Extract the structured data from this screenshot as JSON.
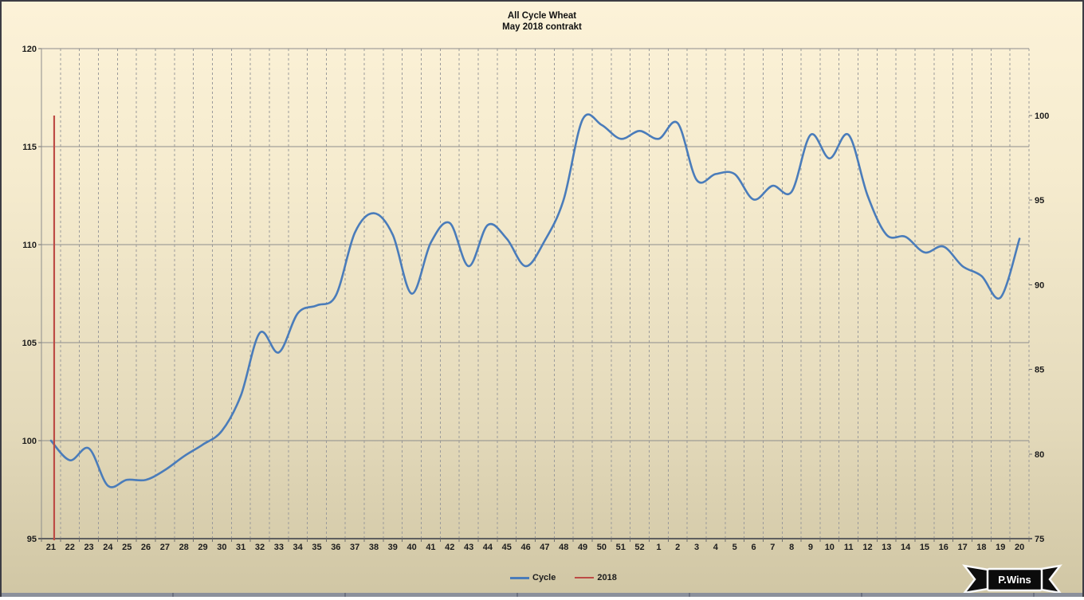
{
  "chart": {
    "title_line1": "All Cycle Wheat",
    "title_line2": "May 2018 contrakt",
    "legend": [
      {
        "label": "Cycle",
        "color": "#4a7cba"
      },
      {
        "label": "2018",
        "color": "#bd4b45"
      }
    ],
    "logo_text": "P.Wins",
    "background_top": "#fcf2d8",
    "background_bottom": "#d0c6a4"
  },
  "chart_data": {
    "type": "line",
    "title": "All Cycle Wheat",
    "subtitle": "May 2018 contrakt",
    "grid": {
      "horizontal": "solid",
      "vertical": "dashed"
    },
    "legend_position": "bottom",
    "x_labels": [
      "21",
      "22",
      "23",
      "24",
      "25",
      "26",
      "27",
      "28",
      "29",
      "30",
      "31",
      "32",
      "33",
      "34",
      "35",
      "36",
      "37",
      "38",
      "39",
      "40",
      "41",
      "42",
      "43",
      "44",
      "45",
      "46",
      "47",
      "48",
      "49",
      "50",
      "51",
      "52",
      "1",
      "2",
      "3",
      "4",
      "5",
      "6",
      "7",
      "8",
      "9",
      "10",
      "11",
      "12",
      "13",
      "14",
      "15",
      "16",
      "17",
      "18",
      "19",
      "20"
    ],
    "left_axis": {
      "range": [
        95,
        120
      ],
      "ticks": [
        95,
        100,
        105,
        110,
        115,
        120
      ]
    },
    "right_axis": {
      "range": [
        75,
        100
      ],
      "ticks": [
        75,
        80,
        85,
        90,
        95,
        100
      ]
    },
    "series": [
      {
        "name": "Cycle",
        "axis": "left",
        "color": "#4a7cba",
        "width": 2.6,
        "smooth": true,
        "values": [
          100.0,
          99.0,
          99.6,
          97.7,
          98.0,
          98.0,
          98.5,
          99.2,
          99.8,
          100.5,
          102.3,
          105.5,
          104.5,
          106.5,
          106.9,
          107.4,
          110.6,
          111.6,
          110.5,
          107.5,
          110.1,
          111.1,
          108.9,
          111.0,
          110.3,
          108.9,
          110.2,
          112.3,
          116.4,
          116.1,
          115.4,
          115.8,
          115.4,
          116.2,
          113.3,
          113.6,
          113.6,
          112.3,
          113.0,
          112.7,
          115.6,
          114.4,
          115.6,
          112.5,
          110.5,
          110.4,
          109.6,
          109.9,
          108.9,
          108.4,
          107.3,
          110.3
        ]
      },
      {
        "name": "2018",
        "axis": "right",
        "color": "#bd4b45",
        "width": 2.2,
        "vertical_at_week": "21",
        "x_offset_categories": 0.67,
        "from": 75,
        "to": 100
      }
    ]
  }
}
